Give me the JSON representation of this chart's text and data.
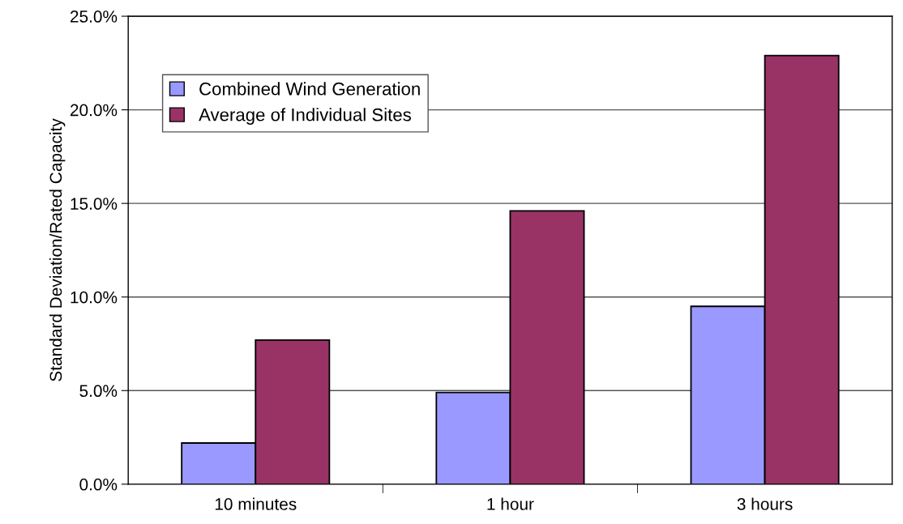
{
  "chart_data": {
    "type": "bar",
    "ylabel": "Standard Deviation/Rated Capacity",
    "categories": [
      "10 minutes",
      "1 hour",
      "3 hours"
    ],
    "series": [
      {
        "name": "Combined Wind Generation",
        "color": "#9999ff",
        "values": [
          2.2,
          4.9,
          9.5
        ]
      },
      {
        "name": "Average of Individual Sites",
        "color": "#993366",
        "values": [
          7.7,
          14.6,
          22.9
        ]
      }
    ],
    "ylim": [
      0,
      25
    ],
    "yticks": [
      {
        "value": 0,
        "label": "0.0%"
      },
      {
        "value": 5,
        "label": "5.0%"
      },
      {
        "value": 10,
        "label": "10.0%"
      },
      {
        "value": 15,
        "label": "15.0%"
      },
      {
        "value": 20,
        "label": "20.0%"
      },
      {
        "value": 25,
        "label": "25.0%"
      }
    ],
    "grid": "y",
    "legend": "top left"
  }
}
